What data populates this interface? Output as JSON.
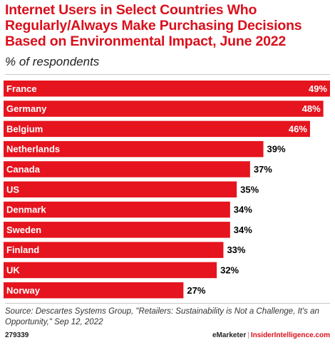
{
  "colors": {
    "bar": "#e5141e",
    "title": "#d9101c",
    "bar_label": "#ffffff",
    "value_outside": "#000000",
    "value_inside": "#ffffff"
  },
  "footer": {
    "chart_id": "279339",
    "brand_emarketer": "eMarketer",
    "brand_separator": "|",
    "brand_insider": "InsiderIntelligence.com"
  },
  "chart_data": {
    "type": "bar",
    "orientation": "horizontal",
    "title": "Internet Users in Select Countries Who Regularly/Always Make Purchasing Decisions Based on Environmental Impact, June 2022",
    "subtitle": "% of respondents",
    "categories": [
      "France",
      "Germany",
      "Belgium",
      "Netherlands",
      "Canada",
      "US",
      "Denmark",
      "Sweden",
      "Finland",
      "UK",
      "Norway"
    ],
    "values": [
      49,
      48,
      46,
      39,
      37,
      35,
      34,
      34,
      33,
      32,
      27
    ],
    "value_labels": [
      "49%",
      "48%",
      "46%",
      "39%",
      "37%",
      "35%",
      "34%",
      "34%",
      "33%",
      "32%",
      "27%"
    ],
    "xlim": [
      0,
      49
    ],
    "grid": false,
    "legend": "none",
    "source": "Source: Descartes Systems Group, \"Retailers: Sustainability is Not a Challenge, It's an Opportunity,\" Sep 12, 2022"
  }
}
